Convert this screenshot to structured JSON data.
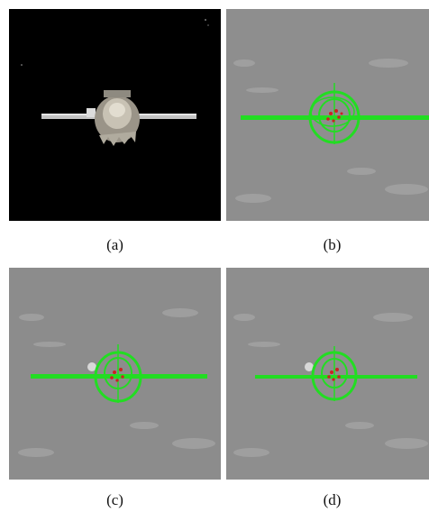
{
  "figure": {
    "panels": [
      {
        "id": "a",
        "caption": "(a)",
        "background": "#000000",
        "overlay": false
      },
      {
        "id": "b",
        "caption": "(b)",
        "background": "#8e8e8e",
        "overlay": true
      },
      {
        "id": "c",
        "caption": "(c)",
        "background": "#8c8c8c",
        "overlay": true
      },
      {
        "id": "d",
        "caption": "(d)",
        "background": "#8e8e8e",
        "overlay": true
      }
    ],
    "colors": {
      "tracking_overlay": "#22dd22",
      "feature_points": "#cc2222",
      "spacecraft_body": "#b8b4a8",
      "solar_panel": "#c8c8c8"
    },
    "icons": {
      "spacecraft": "spacecraft-icon",
      "tracking_ellipse": "tracking-ellipse-icon"
    }
  }
}
